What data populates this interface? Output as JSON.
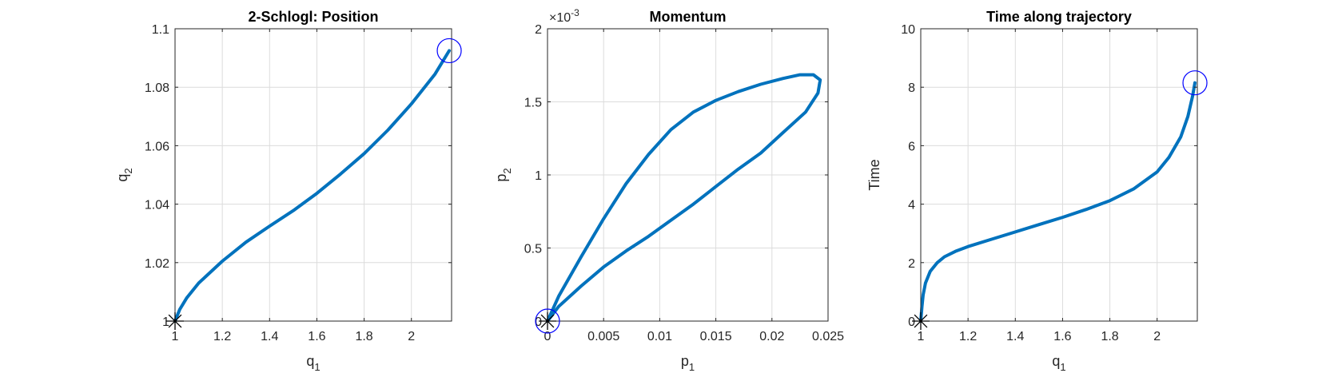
{
  "colors": {
    "series": "#0072BD",
    "end_marker": "#0000FF",
    "start_marker": "#000000"
  },
  "chart_data": [
    {
      "type": "line",
      "title": "2-Schlogl: Position",
      "xlabel": {
        "base": "q",
        "sub": "1"
      },
      "ylabel": {
        "base": "q",
        "sub": "2"
      },
      "xlim": [
        1,
        2.17
      ],
      "ylim": [
        1,
        1.1
      ],
      "xticks": [
        1,
        1.2,
        1.4,
        1.6,
        1.8,
        2
      ],
      "xtick_labels": [
        "1",
        "1.2",
        "1.4",
        "1.6",
        "1.8",
        "2"
      ],
      "yticks": [
        1,
        1.02,
        1.04,
        1.06,
        1.08,
        1.1
      ],
      "ytick_labels": [
        "1",
        "1.02",
        "1.04",
        "1.06",
        "1.08",
        "1.1"
      ],
      "grid": true,
      "series": [
        {
          "x": [
            1.0,
            1.02,
            1.05,
            1.1,
            1.2,
            1.3,
            1.4,
            1.5,
            1.6,
            1.7,
            1.8,
            1.9,
            2.0,
            2.1,
            2.16
          ],
          "y": [
            1.0,
            1.004,
            1.008,
            1.013,
            1.0205,
            1.027,
            1.0325,
            1.0378,
            1.0437,
            1.0503,
            1.0573,
            1.0653,
            1.0743,
            1.0845,
            1.0925
          ]
        }
      ],
      "markers": [
        {
          "shape": "asterisk",
          "x": 1.0,
          "y": 1.0
        },
        {
          "shape": "circle",
          "x": 2.16,
          "y": 1.0925
        }
      ]
    },
    {
      "type": "line",
      "title": "Momentum",
      "exponent_label": "×10",
      "exponent_power": "-3",
      "xlabel": {
        "base": "p",
        "sub": "1"
      },
      "ylabel": {
        "base": "p",
        "sub": "2"
      },
      "xlim": [
        0,
        0.025
      ],
      "ylim": [
        0,
        2
      ],
      "xticks": [
        0,
        0.005,
        0.01,
        0.015,
        0.02,
        0.025
      ],
      "xtick_labels": [
        "0",
        "0.005",
        "0.01",
        "0.015",
        "0.02",
        "0.025"
      ],
      "yticks": [
        0,
        0.5,
        1,
        1.5,
        2
      ],
      "ytick_labels": [
        "0",
        "0.5",
        "1",
        "1.5",
        "2"
      ],
      "grid": true,
      "series": [
        {
          "x": [
            0,
            0.001,
            0.003,
            0.005,
            0.007,
            0.009,
            0.011,
            0.013,
            0.015,
            0.017,
            0.019,
            0.021,
            0.0225,
            0.0237,
            0.0243,
            0.0241,
            0.023,
            0.021,
            0.019,
            0.017,
            0.015,
            0.013,
            0.011,
            0.009,
            0.007,
            0.005,
            0.003,
            0.001,
            0
          ],
          "y": [
            0,
            0.17,
            0.44,
            0.7,
            0.94,
            1.14,
            1.31,
            1.43,
            1.51,
            1.57,
            1.62,
            1.66,
            1.685,
            1.685,
            1.65,
            1.56,
            1.43,
            1.29,
            1.15,
            1.04,
            0.92,
            0.8,
            0.69,
            0.58,
            0.48,
            0.37,
            0.24,
            0.1,
            0
          ]
        }
      ],
      "markers": [
        {
          "shape": "asterisk",
          "x": 0,
          "y": 0
        },
        {
          "shape": "circle",
          "x": 0,
          "y": 0
        }
      ]
    },
    {
      "type": "line",
      "title": "Time along trajectory",
      "xlabel": {
        "base": "q",
        "sub": "1"
      },
      "ylabel": {
        "base": "Time",
        "sub": ""
      },
      "xlim": [
        1,
        2.17
      ],
      "ylim": [
        0,
        10
      ],
      "xticks": [
        1,
        1.2,
        1.4,
        1.6,
        1.8,
        2
      ],
      "xtick_labels": [
        "1",
        "1.2",
        "1.4",
        "1.6",
        "1.8",
        "2"
      ],
      "yticks": [
        0,
        2,
        4,
        6,
        8,
        10
      ],
      "ytick_labels": [
        "0",
        "2",
        "4",
        "6",
        "8",
        "10"
      ],
      "grid": true,
      "series": [
        {
          "x": [
            1.0,
            1.005,
            1.01,
            1.02,
            1.04,
            1.07,
            1.1,
            1.15,
            1.2,
            1.3,
            1.4,
            1.5,
            1.6,
            1.7,
            1.8,
            1.9,
            2.0,
            2.05,
            2.1,
            2.13,
            2.15,
            2.16
          ],
          "y": [
            0,
            0.5,
            0.9,
            1.3,
            1.7,
            2.0,
            2.2,
            2.4,
            2.55,
            2.8,
            3.05,
            3.3,
            3.55,
            3.82,
            4.12,
            4.52,
            5.1,
            5.6,
            6.3,
            7.0,
            7.7,
            8.15
          ]
        }
      ],
      "markers": [
        {
          "shape": "asterisk",
          "x": 1.0,
          "y": 0
        },
        {
          "shape": "circle",
          "x": 2.16,
          "y": 8.15
        }
      ]
    }
  ]
}
